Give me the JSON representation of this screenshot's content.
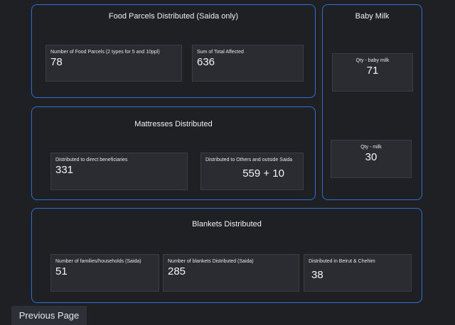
{
  "food_parcels": {
    "title": "Food Parcels Distributed (Saida only)",
    "cards": [
      {
        "label": "Number of Food Parcels (2 types for 5 and 10ppl)",
        "value": "78"
      },
      {
        "label": "Sum of Total Affected",
        "value": "636"
      }
    ]
  },
  "baby_milk": {
    "title": "Baby Milk",
    "cards": [
      {
        "label": "Qty - baby milk",
        "value": "71"
      },
      {
        "label": "Qty - milk",
        "value": "30"
      }
    ]
  },
  "mattresses": {
    "title": "Mattresses Distributed",
    "cards": [
      {
        "label": "Distributed to direct beneficiaries",
        "value": "331"
      },
      {
        "label": "Distributed to Others and outside Saida",
        "value": "559 + 10"
      }
    ]
  },
  "blankets": {
    "title": "Blankets Distributed",
    "cards": [
      {
        "label": "Number of families/households (Saida)",
        "value": "51"
      },
      {
        "label": "Number of blankets Distributed (Saida)",
        "value": "285"
      },
      {
        "label": "Distributed in Beirut & Chehim",
        "value": "38"
      }
    ]
  },
  "navigation": {
    "previous_label": "Previous Page"
  }
}
